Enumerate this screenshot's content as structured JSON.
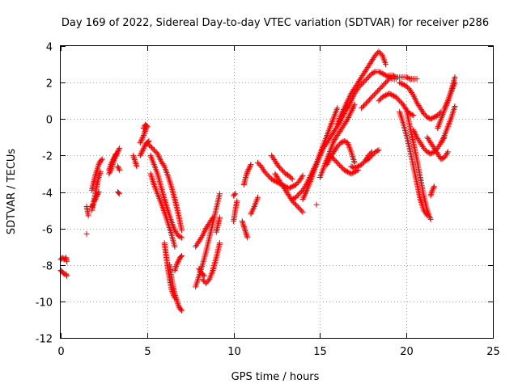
{
  "chart_data": {
    "type": "scatter",
    "title": "Day 169 of 2022, Sidereal Day-to-day VTEC variation (SDTVAR) for receiver p286",
    "xlabel": "GPS time / hours",
    "ylabel": "SDTVAR / TECUs",
    "xlim": [
      0,
      25
    ],
    "ylim": [
      -12,
      4
    ],
    "x_ticks": [
      0,
      5,
      10,
      15,
      20,
      25
    ],
    "y_ticks": [
      -12,
      -10,
      -8,
      -6,
      -4,
      -2,
      0,
      2,
      4
    ],
    "grid": true,
    "marker": "+",
    "color": "#ff0000",
    "series": [
      {
        "x": [
          0.0,
          0.1,
          0.2,
          0.3,
          0.35
        ],
        "y": [
          -7.7,
          -7.6,
          -7.7,
          -7.6,
          -7.8
        ]
      },
      {
        "x": [
          0.0,
          0.1,
          0.2,
          0.3,
          0.35
        ],
        "y": [
          -8.3,
          -8.4,
          -8.5,
          -8.5,
          -8.6
        ]
      },
      {
        "x": [
          1.5,
          1.6
        ],
        "y": [
          -4.8,
          -5.3
        ]
      },
      {
        "x": [
          1.5
        ],
        "y": [
          -6.3
        ]
      },
      {
        "x": [
          1.8,
          1.9,
          2.0,
          2.1,
          2.2,
          2.3
        ],
        "y": [
          -5.0,
          -4.6,
          -4.1,
          -3.6,
          -3.2,
          -2.9
        ]
      },
      {
        "x": [
          1.8,
          1.9,
          2.0,
          2.1,
          2.2,
          2.3,
          2.4
        ],
        "y": [
          -3.9,
          -3.5,
          -3.1,
          -2.8,
          -2.5,
          -2.3,
          -2.2
        ]
      },
      {
        "x": [
          1.8,
          1.9,
          2.0,
          2.1,
          2.2
        ],
        "y": [
          -4.8,
          -4.6,
          -4.4,
          -4.2,
          -4.0
        ]
      },
      {
        "x": [
          2.8,
          2.9,
          3.0,
          3.1,
          3.2
        ],
        "y": [
          -2.8,
          -2.5,
          -2.3,
          -2.1,
          -1.9
        ]
      },
      {
        "x": [
          2.8,
          2.9,
          3.0,
          3.1,
          3.2,
          3.3,
          3.4
        ],
        "y": [
          -3.0,
          -2.8,
          -2.5,
          -2.2,
          -2.0,
          -1.8,
          -1.6
        ]
      },
      {
        "x": [
          3.3,
          3.4
        ],
        "y": [
          -2.6,
          -2.8
        ]
      },
      {
        "x": [
          3.3,
          3.4
        ],
        "y": [
          -4.0,
          -4.1
        ]
      },
      {
        "x": [
          4.2,
          4.3,
          4.4
        ],
        "y": [
          -2.0,
          -2.3,
          -2.6
        ]
      },
      {
        "x": [
          4.6,
          4.7,
          4.8,
          4.9,
          5.0
        ],
        "y": [
          -1.3,
          -1.1,
          -0.9,
          -0.6,
          -0.4
        ]
      },
      {
        "x": [
          4.6,
          4.7,
          4.8,
          4.9,
          5.0,
          5.1
        ],
        "y": [
          -2.0,
          -1.8,
          -1.6,
          -1.4,
          -1.3,
          -1.2
        ]
      },
      {
        "x": [
          4.8,
          4.9,
          5.0
        ],
        "y": [
          -0.5,
          -0.3,
          -0.4
        ]
      },
      {
        "x": [
          5.0,
          5.2,
          5.4,
          5.6,
          5.8,
          6.0,
          6.2,
          6.4,
          6.6,
          6.8,
          7.0
        ],
        "y": [
          -1.3,
          -1.5,
          -1.7,
          -1.9,
          -2.3,
          -2.6,
          -3.1,
          -3.7,
          -4.4,
          -5.2,
          -6.1
        ]
      },
      {
        "x": [
          5.2,
          5.4,
          5.6,
          5.8,
          6.0,
          6.2,
          6.4,
          6.6,
          6.8,
          7.0
        ],
        "y": [
          -2.0,
          -2.5,
          -3.0,
          -3.7,
          -4.4,
          -5.0,
          -5.6,
          -6.1,
          -6.4,
          -6.5
        ]
      },
      {
        "x": [
          5.2,
          5.4,
          5.6,
          5.8,
          6.0,
          6.2,
          6.4,
          6.6
        ],
        "y": [
          -3.0,
          -3.6,
          -4.1,
          -4.6,
          -5.1,
          -5.7,
          -6.3,
          -7.0
        ]
      },
      {
        "x": [
          6.0,
          6.1,
          6.2,
          6.3,
          6.4,
          6.5,
          6.6
        ],
        "y": [
          -6.8,
          -7.5,
          -8.2,
          -8.8,
          -9.3,
          -9.6,
          -9.8
        ]
      },
      {
        "x": [
          6.3,
          6.4,
          6.5,
          6.6,
          6.7,
          6.8,
          6.9,
          7.0
        ],
        "y": [
          -8.0,
          -8.6,
          -9.2,
          -9.6,
          -9.9,
          -10.2,
          -10.4,
          -10.5
        ]
      },
      {
        "x": [
          6.6,
          6.7,
          6.8,
          6.9,
          7.0
        ],
        "y": [
          -8.3,
          -8.0,
          -7.8,
          -7.6,
          -7.5
        ]
      },
      {
        "x": [
          7.8,
          8.0,
          8.2,
          8.4,
          8.6,
          8.8,
          9.0,
          9.2
        ],
        "y": [
          -9.2,
          -8.6,
          -8.0,
          -7.3,
          -6.5,
          -5.7,
          -4.9,
          -4.1
        ]
      },
      {
        "x": [
          7.8,
          8.0,
          8.2,
          8.4,
          8.6,
          8.8
        ],
        "y": [
          -7.0,
          -6.7,
          -6.4,
          -6.0,
          -5.7,
          -5.4
        ]
      },
      {
        "x": [
          8.2,
          8.4,
          8.6,
          8.8,
          9.0,
          9.2
        ],
        "y": [
          -8.8,
          -9.0,
          -8.8,
          -8.3,
          -7.6,
          -6.8
        ]
      },
      {
        "x": [
          8.0,
          8.1,
          8.2,
          8.3
        ],
        "y": [
          -8.2,
          -8.4,
          -8.5,
          -8.6
        ]
      },
      {
        "x": [
          9.0,
          9.1,
          9.2
        ],
        "y": [
          -6.2,
          -5.8,
          -5.4
        ]
      },
      {
        "x": [
          10.0,
          10.1,
          10.2
        ],
        "y": [
          -5.6,
          -5.0,
          -4.5
        ]
      },
      {
        "x": [
          10.0,
          10.1
        ],
        "y": [
          -4.2,
          -4.1
        ]
      },
      {
        "x": [
          10.5,
          10.6,
          10.7,
          10.8
        ],
        "y": [
          -5.6,
          -5.9,
          -6.2,
          -6.5
        ]
      },
      {
        "x": [
          10.6,
          10.7,
          10.8,
          10.9,
          11.0
        ],
        "y": [
          -3.6,
          -3.2,
          -2.9,
          -2.7,
          -2.5
        ]
      },
      {
        "x": [
          11.0,
          11.2,
          11.4
        ],
        "y": [
          -5.2,
          -4.8,
          -4.3
        ]
      },
      {
        "x": [
          11.4,
          11.6,
          11.8,
          12.0,
          12.2,
          12.4,
          12.6,
          12.8,
          13.0,
          13.2,
          13.4,
          13.6,
          13.8,
          14.0
        ],
        "y": [
          -2.4,
          -2.6,
          -2.9,
          -3.1,
          -3.3,
          -3.4,
          -3.5,
          -3.6,
          -3.7,
          -3.8,
          -3.7,
          -3.6,
          -3.4,
          -3.1
        ]
      },
      {
        "x": [
          12.4,
          12.6,
          12.8,
          13.0,
          13.2,
          13.4,
          13.6,
          13.8,
          14.0
        ],
        "y": [
          -3.0,
          -3.3,
          -3.6,
          -3.9,
          -4.2,
          -4.5,
          -4.7,
          -4.9,
          -5.1
        ]
      },
      {
        "x": [
          12.2,
          12.4,
          12.6,
          12.8,
          13.0,
          13.2,
          13.4
        ],
        "y": [
          -2.0,
          -2.3,
          -2.6,
          -2.8,
          -3.0,
          -3.1,
          -3.3
        ]
      },
      {
        "x": [
          13.4,
          13.6,
          13.8,
          14.0,
          14.2,
          14.4,
          14.6,
          14.8,
          15.0,
          15.2,
          15.4,
          15.6,
          15.8,
          16.0
        ],
        "y": [
          -4.4,
          -4.3,
          -4.1,
          -3.9,
          -3.6,
          -3.2,
          -2.8,
          -2.4,
          -1.9,
          -1.4,
          -0.9,
          -0.4,
          0.1,
          0.6
        ]
      },
      {
        "x": [
          14.0,
          14.2,
          14.4,
          14.6,
          14.8,
          15.0,
          15.2,
          15.4,
          15.6,
          15.8,
          16.0,
          16.2,
          16.4,
          16.6
        ],
        "y": [
          -4.4,
          -4.0,
          -3.5,
          -3.0,
          -2.5,
          -2.0,
          -1.6,
          -1.3,
          -1.0,
          -0.7,
          -0.4,
          -0.1,
          0.3,
          0.7
        ]
      },
      {
        "x": [
          14.8
        ],
        "y": [
          -4.7
        ]
      },
      {
        "x": [
          15.0,
          15.2,
          15.4,
          15.6,
          15.8,
          16.0,
          16.2,
          16.4,
          16.6,
          16.8,
          17.0
        ],
        "y": [
          -3.2,
          -2.7,
          -2.2,
          -1.7,
          -1.2,
          -0.9,
          -0.6,
          -0.3,
          0.0,
          0.4,
          0.8
        ]
      },
      {
        "x": [
          15.4,
          15.6,
          15.8,
          16.0,
          16.2,
          16.4,
          16.6,
          16.8,
          17.0
        ],
        "y": [
          -2.5,
          -2.1,
          -1.8,
          -1.5,
          -1.3,
          -1.2,
          -1.3,
          -1.8,
          -2.4
        ]
      },
      {
        "x": [
          15.6,
          15.8,
          16.0,
          16.2,
          16.4,
          16.6,
          16.8,
          17.0,
          17.2
        ],
        "y": [
          -2.0,
          -2.2,
          -2.4,
          -2.6,
          -2.8,
          -2.9,
          -3.0,
          -2.9,
          -2.8
        ]
      },
      {
        "x": [
          16.0,
          16.2,
          16.4,
          16.6,
          16.8,
          17.0,
          17.2,
          17.4,
          17.6,
          17.8,
          18.0,
          18.2,
          18.4,
          18.6,
          18.8
        ],
        "y": [
          -0.3,
          0.2,
          0.6,
          1.0,
          1.4,
          1.7,
          2.0,
          2.3,
          2.6,
          2.9,
          3.2,
          3.5,
          3.7,
          3.5,
          3.0
        ]
      },
      {
        "x": [
          16.6,
          16.8,
          17.0,
          17.2,
          17.4,
          17.6,
          17.8,
          18.0,
          18.2,
          18.4,
          18.6,
          18.8,
          19.0,
          19.2,
          19.4
        ],
        "y": [
          0.6,
          1.0,
          1.4,
          1.7,
          1.9,
          2.1,
          2.3,
          2.5,
          2.6,
          2.6,
          2.5,
          2.4,
          2.3,
          2.2,
          2.2
        ]
      },
      {
        "x": [
          16.8,
          17.0,
          17.2,
          17.4,
          17.6,
          17.8,
          18.0
        ],
        "y": [
          -2.6,
          -2.7,
          -2.6,
          -2.5,
          -2.3,
          -2.0,
          -1.8
        ]
      },
      {
        "x": [
          17.4,
          17.6,
          17.8,
          18.0,
          18.2,
          18.4,
          18.6,
          18.8,
          19.0
        ],
        "y": [
          0.6,
          0.8,
          1.0,
          1.2,
          1.4,
          1.6,
          1.8,
          2.0,
          2.2
        ]
      },
      {
        "x": [
          17.6,
          17.8,
          18.0,
          18.2,
          18.4
        ],
        "y": [
          -2.3,
          -2.2,
          -2.0,
          -1.8,
          -1.7
        ]
      },
      {
        "x": [
          18.4,
          18.6,
          18.8,
          19.0,
          19.2,
          19.4,
          19.6,
          19.8,
          20.0,
          20.2,
          20.4
        ],
        "y": [
          1.0,
          1.2,
          1.3,
          1.4,
          1.3,
          1.2,
          1.0,
          0.8,
          0.5,
          0.3,
          0.2
        ]
      },
      {
        "x": [
          19.0,
          19.2,
          19.4,
          19.6,
          19.8,
          20.0,
          20.2,
          20.4,
          20.6
        ],
        "y": [
          2.4,
          2.4,
          2.3,
          2.3,
          2.3,
          2.3,
          2.2,
          2.2,
          2.2
        ]
      },
      {
        "x": [
          19.6,
          19.8,
          20.0,
          20.2,
          20.4,
          20.6,
          20.8,
          21.0,
          21.2,
          21.4,
          21.6,
          21.8,
          22.0
        ],
        "y": [
          2.0,
          1.9,
          1.8,
          1.6,
          1.3,
          0.9,
          0.6,
          0.3,
          0.1,
          0.0,
          0.1,
          0.2,
          0.4
        ]
      },
      {
        "x": [
          19.6,
          19.8,
          20.0,
          20.2,
          20.4,
          20.6,
          20.8,
          21.0,
          21.2
        ],
        "y": [
          0.4,
          -0.2,
          -0.9,
          -1.7,
          -2.6,
          -3.5,
          -4.4,
          -5.0,
          -5.3
        ]
      },
      {
        "x": [
          20.0,
          20.2,
          20.4,
          20.6,
          20.8,
          21.0,
          21.2,
          21.4
        ],
        "y": [
          0.5,
          -0.4,
          -1.3,
          -2.2,
          -3.2,
          -4.2,
          -5.0,
          -5.5
        ]
      },
      {
        "x": [
          20.4,
          20.6,
          20.8,
          21.0,
          21.2,
          21.4,
          21.6,
          21.8,
          22.0,
          22.2
        ],
        "y": [
          -0.6,
          -1.0,
          -1.3,
          -1.6,
          -1.8,
          -1.9,
          -1.8,
          -1.6,
          -1.3,
          -1.0
        ]
      },
      {
        "x": [
          21.2,
          21.4,
          21.6,
          21.8,
          22.0,
          22.2,
          22.4
        ],
        "y": [
          -1.0,
          -1.3,
          -1.6,
          -1.9,
          -2.2,
          -2.1,
          -1.8
        ]
      },
      {
        "x": [
          21.4,
          21.5,
          21.6
        ],
        "y": [
          -4.2,
          -3.9,
          -3.7
        ]
      },
      {
        "x": [
          21.8,
          22.0,
          22.2,
          22.4,
          22.6,
          22.8
        ],
        "y": [
          -0.5,
          0.0,
          0.5,
          1.0,
          1.6,
          2.3
        ]
      },
      {
        "x": [
          22.0,
          22.2,
          22.4,
          22.6,
          22.8
        ],
        "y": [
          -1.3,
          -0.9,
          -0.4,
          0.1,
          0.7
        ]
      },
      {
        "x": [
          22.2,
          22.4,
          22.6,
          22.8
        ],
        "y": [
          0.6,
          1.0,
          1.5,
          2.0
        ]
      }
    ]
  }
}
